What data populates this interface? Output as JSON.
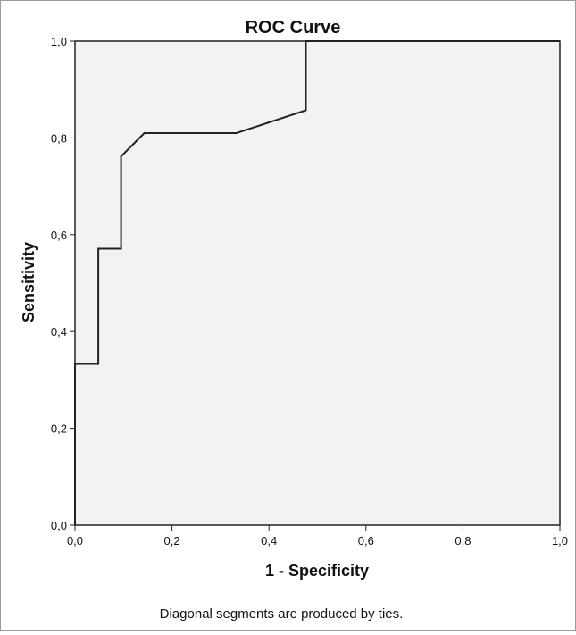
{
  "chart_data": {
    "type": "line",
    "title": "ROC Curve",
    "xlabel": "1 - Specificity",
    "ylabel": "Sensitivity",
    "xlim": [
      0,
      1
    ],
    "ylim": [
      0,
      1
    ],
    "xticks": [
      "0,0",
      "0,2",
      "0,4",
      "0,6",
      "0,8",
      "1,0"
    ],
    "yticks": [
      "0,0",
      "0,2",
      "0,4",
      "0,6",
      "0,8",
      "1,0"
    ],
    "grid": false,
    "series": [
      {
        "x": [
          0.0,
          0.0,
          0.048,
          0.048,
          0.095,
          0.095,
          0.143,
          0.333,
          0.476,
          0.476,
          1.0
        ],
        "y": [
          0.0,
          0.333,
          0.333,
          0.571,
          0.571,
          0.762,
          0.81,
          0.81,
          0.857,
          1.0,
          1.0
        ]
      }
    ],
    "line_color": "#222222",
    "plot_background": "#f2f2f2",
    "footnote": "Diagonal segments are produced by ties."
  }
}
